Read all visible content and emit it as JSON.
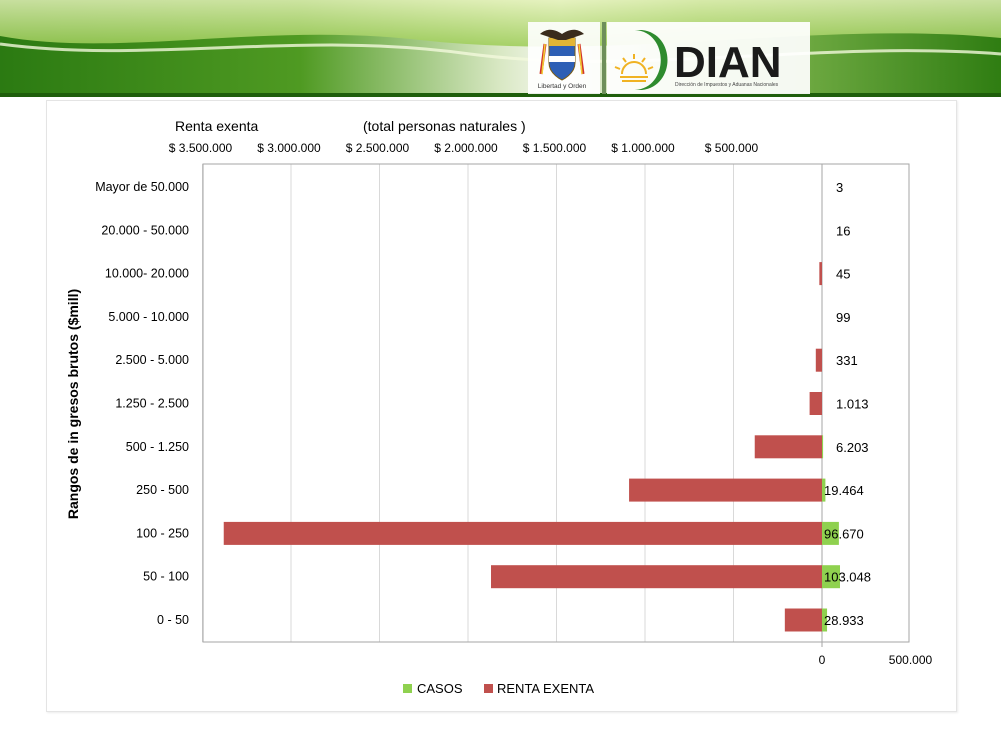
{
  "header": {
    "crest_caption": "Libertad y Orden",
    "logo_text": "DIAN",
    "logo_subtitle": "Dirección de Impuestos y Aduanas Nacionales"
  },
  "colors": {
    "casos": "#8fd14f",
    "renta_exenta": "#c0504d",
    "header_green": "#2f7d12",
    "dian_green": "#2e8b2e"
  },
  "chart_data": {
    "type": "bar",
    "orientation": "horizontal",
    "title_left": "Renta exenta",
    "title_right": "(total personas naturales )",
    "ylabel": "Rangos de in gresos brutos  ($mill)",
    "categories": [
      "Mayor de 50.000",
      "20.000 - 50.000",
      "10.000- 20.000",
      "5.000 - 10.000",
      "2.500 - 5.000",
      "1.250 - 2.500",
      "500 - 1.250",
      "250 - 500",
      "100 - 250",
      "50 - 100",
      "0 - 50"
    ],
    "top_axis": {
      "ticks": [
        3500000,
        3000000,
        2500000,
        2000000,
        1500000,
        1000000,
        500000
      ],
      "tick_labels": [
        "$ 3.500.000",
        "$ 3.000.000",
        "$ 2.500.000",
        "$ 2.000.000",
        "$ 1.500.000",
        "$ 1.000.000",
        "$ 500.000"
      ]
    },
    "bottom_axis": {
      "ticks": [
        0,
        500000
      ],
      "tick_labels": [
        "0",
        "500.000"
      ]
    },
    "xlim": [
      -3500000,
      500000
    ],
    "grid": true,
    "legend_position": "bottom",
    "series": [
      {
        "name": "CASOS",
        "values": [
          3,
          16,
          45,
          99,
          331,
          1013,
          6203,
          19464,
          96670,
          103048,
          28933
        ],
        "labels": [
          "3",
          "16",
          "45",
          "99",
          "331",
          "1.013",
          "6.203",
          "19.464",
          "96.670",
          "103.048",
          "28.933"
        ]
      },
      {
        "name": "RENTA EXENTA",
        "values": [
          0,
          0,
          15000,
          0,
          35000,
          70000,
          380000,
          1090000,
          3380000,
          1870000,
          210000
        ]
      }
    ]
  }
}
